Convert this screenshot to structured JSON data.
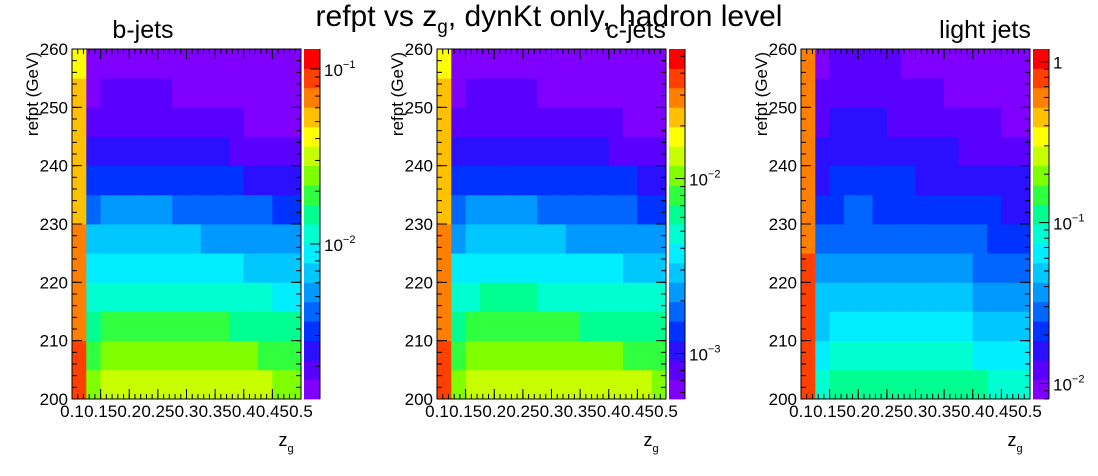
{
  "title": {
    "prefix": "refpt vs z",
    "sub": "g",
    "suffix": ", dynKt only, hadron level"
  },
  "chart_data": {
    "type": "heatmap",
    "x_bins": [
      0.1,
      0.125,
      0.15,
      0.175,
      0.2,
      0.225,
      0.25,
      0.275,
      0.3,
      0.325,
      0.35,
      0.375,
      0.4,
      0.425,
      0.45,
      0.475,
      0.5
    ],
    "y_bins": [
      200,
      205,
      210,
      215,
      220,
      225,
      230,
      235,
      240,
      245,
      250,
      255,
      260
    ],
    "xlim": [
      0.1,
      0.5
    ],
    "ylim": [
      200,
      260
    ],
    "xlabel_main": "z",
    "xlabel_sub": "g",
    "ylabel": "refpt (GeV)",
    "x_ticks": [
      {
        "v": 0.1,
        "label": "0.1"
      },
      {
        "v": 0.15,
        "label": "0.15"
      },
      {
        "v": 0.2,
        "label": "0.2"
      },
      {
        "v": 0.25,
        "label": "0.25"
      },
      {
        "v": 0.3,
        "label": "0.3"
      },
      {
        "v": 0.35,
        "label": "0.35"
      },
      {
        "v": 0.4,
        "label": "0.4"
      },
      {
        "v": 0.45,
        "label": "0.45"
      },
      {
        "v": 0.5,
        "label": "0.5"
      }
    ],
    "y_ticks": [
      {
        "v": 200,
        "label": "200"
      },
      {
        "v": 210,
        "label": "210"
      },
      {
        "v": 220,
        "label": "220"
      },
      {
        "v": 230,
        "label": "230"
      },
      {
        "v": 240,
        "label": "240"
      },
      {
        "v": 250,
        "label": "250"
      },
      {
        "v": 260,
        "label": "260"
      }
    ],
    "colormap": [
      "#8000ff",
      "#5a00ff",
      "#2a10ff",
      "#0033ff",
      "#0066ff",
      "#0099ff",
      "#00c8ff",
      "#00eeff",
      "#00ffd0",
      "#00ff90",
      "#30ff40",
      "#80ff00",
      "#c8ff00",
      "#ffff00",
      "#ffc000",
      "#ff8000",
      "#ff4000",
      "#ff0000"
    ],
    "panels": [
      {
        "name": "b-jets",
        "zlim": [
          0.0013,
          0.13
        ],
        "z_ticks": [
          {
            "v": 0.1,
            "base": "10",
            "exp": "−1"
          },
          {
            "v": 0.01,
            "base": "10",
            "exp": "−2"
          }
        ],
        "values": [
          [
            0.084,
            0.026,
            0.03,
            0.034,
            0.036,
            0.036,
            0.036,
            0.035,
            0.034,
            0.033,
            0.032,
            0.031,
            0.03,
            0.029,
            0.028,
            0.027
          ],
          [
            0.079,
            0.021,
            0.024,
            0.026,
            0.027,
            0.027,
            0.026,
            0.026,
            0.025,
            0.024,
            0.024,
            0.023,
            0.022,
            0.021,
            0.021,
            0.02
          ],
          [
            0.074,
            0.016,
            0.018,
            0.019,
            0.019,
            0.019,
            0.019,
            0.018,
            0.018,
            0.017,
            0.017,
            0.016,
            0.016,
            0.015,
            0.015,
            0.014
          ],
          [
            0.07,
            0.012,
            0.013,
            0.013,
            0.013,
            0.013,
            0.013,
            0.013,
            0.012,
            0.012,
            0.012,
            0.011,
            0.011,
            0.011,
            0.01,
            0.0099
          ],
          [
            0.066,
            0.0085,
            0.0093,
            0.0095,
            0.0095,
            0.0094,
            0.0092,
            0.0089,
            0.0087,
            0.0084,
            0.0081,
            0.0079,
            0.0076,
            0.0074,
            0.0072,
            0.007
          ],
          [
            0.062,
            0.0061,
            0.0067,
            0.0069,
            0.0068,
            0.0067,
            0.0065,
            0.0063,
            0.0061,
            0.0059,
            0.0057,
            0.0055,
            0.0054,
            0.0052,
            0.005,
            0.0049
          ],
          [
            0.059,
            0.0044,
            0.0049,
            0.005,
            0.0049,
            0.0048,
            0.0047,
            0.0045,
            0.0044,
            0.0042,
            0.0041,
            0.004,
            0.0038,
            0.0037,
            0.0036,
            0.0035
          ],
          [
            0.056,
            0.0032,
            0.0036,
            0.0036,
            0.0036,
            0.0035,
            0.0034,
            0.0033,
            0.0032,
            0.0031,
            0.003,
            0.0029,
            0.0028,
            0.0027,
            0.0026,
            0.0025
          ],
          [
            0.053,
            0.0024,
            0.0027,
            0.0027,
            0.0027,
            0.0026,
            0.0025,
            0.0024,
            0.0024,
            0.0023,
            0.0022,
            0.0021,
            0.0021,
            0.002,
            0.0019,
            0.0019
          ],
          [
            0.05,
            0.0019,
            0.0021,
            0.0021,
            0.0021,
            0.002,
            0.002,
            0.0019,
            0.0018,
            0.0018,
            0.0017,
            0.0017,
            0.0016,
            0.0016,
            0.0015,
            0.0015
          ],
          [
            0.048,
            0.0016,
            0.0018,
            0.0018,
            0.0018,
            0.0017,
            0.0017,
            0.0016,
            0.0016,
            0.0015,
            0.0015,
            0.0014,
            0.0014,
            0.0014,
            0.0013,
            0.0013
          ],
          [
            0.046,
            0.0015,
            0.0016,
            0.0016,
            0.0016,
            0.0016,
            0.0015,
            0.0015,
            0.0014,
            0.0014,
            0.0014,
            0.0013,
            0.0013,
            0.0013,
            0.0012,
            0.0012
          ]
        ]
      },
      {
        "name": "c-jets",
        "zlim": [
          0.00055,
          0.055
        ],
        "z_ticks": [
          {
            "v": 0.01,
            "base": "10",
            "exp": "−2"
          },
          {
            "v": 0.001,
            "base": "10",
            "exp": "−3"
          }
        ],
        "values": [
          [
            0.036,
            0.011,
            0.012,
            0.014,
            0.015,
            0.015,
            0.015,
            0.015,
            0.014,
            0.014,
            0.014,
            0.013,
            0.013,
            0.012,
            0.012,
            0.011
          ],
          [
            0.033,
            0.0085,
            0.0098,
            0.011,
            0.011,
            0.011,
            0.011,
            0.011,
            0.011,
            0.01,
            0.01,
            0.0097,
            0.0094,
            0.0091,
            0.0088,
            0.0085
          ],
          [
            0.031,
            0.0065,
            0.0073,
            0.0078,
            0.008,
            0.008,
            0.0079,
            0.0077,
            0.0075,
            0.0073,
            0.0071,
            0.0069,
            0.0067,
            0.0065,
            0.0063,
            0.0061
          ],
          [
            0.03,
            0.0048,
            0.0053,
            0.0055,
            0.0056,
            0.0056,
            0.0055,
            0.0054,
            0.0053,
            0.0051,
            0.005,
            0.0048,
            0.0047,
            0.0046,
            0.0044,
            0.0043
          ],
          [
            0.028,
            0.0035,
            0.0039,
            0.004,
            0.004,
            0.004,
            0.0039,
            0.0038,
            0.0037,
            0.0036,
            0.0035,
            0.0034,
            0.0033,
            0.0032,
            0.0031,
            0.003
          ],
          [
            0.026,
            0.0025,
            0.0028,
            0.0029,
            0.0029,
            0.0028,
            0.0028,
            0.0027,
            0.0026,
            0.0025,
            0.0025,
            0.0024,
            0.0023,
            0.0022,
            0.0022,
            0.0021
          ],
          [
            0.025,
            0.0019,
            0.0021,
            0.0021,
            0.0021,
            0.002,
            0.002,
            0.0019,
            0.0019,
            0.0018,
            0.0018,
            0.0017,
            0.0017,
            0.0016,
            0.0015,
            0.0015
          ],
          [
            0.024,
            0.0014,
            0.0015,
            0.0015,
            0.0015,
            0.0015,
            0.0014,
            0.0014,
            0.0014,
            0.0013,
            0.0013,
            0.0012,
            0.0012,
            0.0012,
            0.0011,
            0.0011
          ],
          [
            0.022,
            0.001,
            0.0011,
            0.0011,
            0.0011,
            0.0011,
            0.0011,
            0.001,
            0.001,
            0.00098,
            0.00095,
            0.00092,
            0.00089,
            0.00086,
            0.00083,
            0.00081
          ],
          [
            0.021,
            0.00082,
            0.0009,
            0.0009,
            0.00089,
            0.00087,
            0.00085,
            0.00082,
            0.0008,
            0.00078,
            0.00076,
            0.00074,
            0.00072,
            0.0007,
            0.00068,
            0.00066
          ],
          [
            0.02,
            0.0007,
            0.00076,
            0.00077,
            0.00076,
            0.00075,
            0.00073,
            0.00071,
            0.00069,
            0.00067,
            0.00065,
            0.00063,
            0.00062,
            0.0006,
            0.00058,
            0.00057
          ],
          [
            0.019,
            0.00064,
            0.0007,
            0.00071,
            0.0007,
            0.00069,
            0.00067,
            0.00065,
            0.00063,
            0.00062,
            0.0006,
            0.00058,
            0.00057,
            0.00056,
            0.00054,
            0.00053
          ]
        ]
      },
      {
        "name": "light jets",
        "zlim": [
          0.008,
          1.2
        ],
        "z_ticks": [
          {
            "v": 1,
            "base": "1",
            "exp": ""
          },
          {
            "v": 0.1,
            "base": "10",
            "exp": "−1"
          },
          {
            "v": 0.01,
            "base": "10",
            "exp": "−2"
          }
        ],
        "values": [
          [
            0.9,
            0.09,
            0.105,
            0.12,
            0.125,
            0.125,
            0.122,
            0.118,
            0.114,
            0.11,
            0.106,
            0.102,
            0.098,
            0.094,
            0.091,
            0.088
          ],
          [
            0.85,
            0.07,
            0.082,
            0.09,
            0.093,
            0.093,
            0.091,
            0.088,
            0.085,
            0.082,
            0.079,
            0.076,
            0.073,
            0.07,
            0.068,
            0.065
          ],
          [
            0.8,
            0.055,
            0.063,
            0.068,
            0.07,
            0.07,
            0.068,
            0.066,
            0.064,
            0.062,
            0.06,
            0.058,
            0.055,
            0.053,
            0.051,
            0.049
          ],
          [
            0.75,
            0.043,
            0.049,
            0.052,
            0.053,
            0.052,
            0.051,
            0.05,
            0.048,
            0.046,
            0.045,
            0.043,
            0.042,
            0.04,
            0.039,
            0.037
          ],
          [
            0.72,
            0.034,
            0.038,
            0.04,
            0.04,
            0.04,
            0.039,
            0.038,
            0.036,
            0.035,
            0.034,
            0.033,
            0.032,
            0.031,
            0.03,
            0.029
          ],
          [
            0.68,
            0.027,
            0.03,
            0.031,
            0.031,
            0.031,
            0.03,
            0.029,
            0.028,
            0.027,
            0.026,
            0.025,
            0.025,
            0.024,
            0.023,
            0.022
          ],
          [
            0.65,
            0.022,
            0.024,
            0.025,
            0.025,
            0.024,
            0.024,
            0.023,
            0.022,
            0.021,
            0.021,
            0.02,
            0.019,
            0.019,
            0.018,
            0.017
          ],
          [
            0.62,
            0.018,
            0.02,
            0.02,
            0.02,
            0.02,
            0.019,
            0.019,
            0.018,
            0.017,
            0.017,
            0.016,
            0.016,
            0.015,
            0.015,
            0.014
          ],
          [
            0.6,
            0.015,
            0.017,
            0.017,
            0.017,
            0.016,
            0.016,
            0.015,
            0.015,
            0.014,
            0.014,
            0.013,
            0.013,
            0.013,
            0.012,
            0.012
          ],
          [
            0.57,
            0.013,
            0.014,
            0.014,
            0.014,
            0.014,
            0.013,
            0.013,
            0.013,
            0.012,
            0.012,
            0.011,
            0.011,
            0.011,
            0.01,
            0.01
          ],
          [
            0.55,
            0.011,
            0.012,
            0.012,
            0.012,
            0.012,
            0.012,
            0.011,
            0.011,
            0.011,
            0.01,
            0.01,
            0.0098,
            0.0095,
            0.0092,
            0.009
          ],
          [
            0.53,
            0.01,
            0.011,
            0.011,
            0.011,
            0.011,
            0.011,
            0.01,
            0.01,
            0.0098,
            0.0095,
            0.0093,
            0.009,
            0.0088,
            0.0085,
            0.0083
          ]
        ]
      }
    ]
  }
}
